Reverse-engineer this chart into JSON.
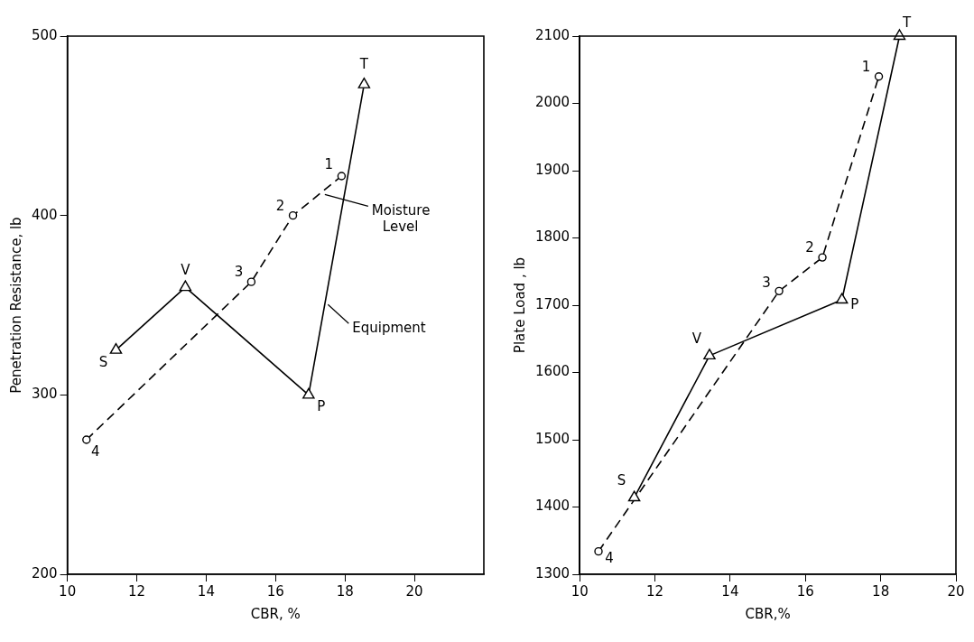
{
  "chart_data": [
    {
      "type": "line",
      "xlabel": "CBR, %",
      "ylabel": "Penetration Resistance, lb",
      "xlim": [
        10,
        22
      ],
      "xticks": [
        10,
        12,
        14,
        16,
        18,
        20
      ],
      "ylim": [
        200,
        500
      ],
      "yticks": [
        200,
        300,
        400,
        500
      ],
      "grid": false,
      "series": [
        {
          "name": "Equipment",
          "color": "#000000",
          "marker": "triangle",
          "line_style": "solid",
          "x": [
            11.4,
            13.4,
            16.95,
            18.55
          ],
          "values": [
            325,
            360,
            300,
            473
          ]
        },
        {
          "name": "Moisture Level",
          "color": "#000000",
          "marker": "circle",
          "line_style": "dashed",
          "x": [
            10.55,
            15.3,
            16.5,
            17.9
          ],
          "values": [
            275,
            363,
            400,
            422
          ]
        }
      ],
      "annotations": [
        {
          "text": "S",
          "x": 11.4,
          "y": 325
        },
        {
          "text": "V",
          "x": 13.4,
          "y": 360
        },
        {
          "text": "P",
          "x": 16.95,
          "y": 300
        },
        {
          "text": "T",
          "x": 18.55,
          "y": 473
        },
        {
          "text": "4",
          "x": 10.55,
          "y": 275
        },
        {
          "text": "3",
          "x": 15.3,
          "y": 363
        },
        {
          "text": "2",
          "x": 16.5,
          "y": 400
        },
        {
          "text": "1",
          "x": 17.9,
          "y": 422
        }
      ]
    },
    {
      "type": "line",
      "xlabel": "CBR,%",
      "ylabel": "Plate Load , lb",
      "xlim": [
        10,
        20
      ],
      "xticks": [
        10,
        12,
        14,
        16,
        18,
        20
      ],
      "ylim": [
        1300,
        2100
      ],
      "yticks": [
        1300,
        1400,
        1500,
        1600,
        1700,
        1800,
        1900,
        2000,
        2100
      ],
      "grid": false,
      "series": [
        {
          "color": "#000000",
          "marker": "triangle",
          "line_style": "solid",
          "x": [
            11.45,
            13.45,
            16.97,
            18.5
          ],
          "values": [
            1414,
            1625,
            1708,
            2100
          ]
        },
        {
          "color": "#000000",
          "marker": "circle",
          "line_style": "dashed",
          "x": [
            10.5,
            15.3,
            16.45,
            17.95
          ],
          "values": [
            1334,
            1721,
            1771,
            2040
          ]
        }
      ],
      "annotations": [
        {
          "text": "S",
          "x": 11.45,
          "y": 1414
        },
        {
          "text": "V",
          "x": 13.45,
          "y": 1625
        },
        {
          "text": "P",
          "x": 16.97,
          "y": 1708
        },
        {
          "text": "T",
          "x": 18.5,
          "y": 2100
        },
        {
          "text": "4",
          "x": 10.5,
          "y": 1334
        },
        {
          "text": "3",
          "x": 15.3,
          "y": 1721
        },
        {
          "text": "2",
          "x": 16.45,
          "y": 1771
        },
        {
          "text": "1",
          "x": 17.95,
          "y": 2040
        }
      ]
    }
  ]
}
